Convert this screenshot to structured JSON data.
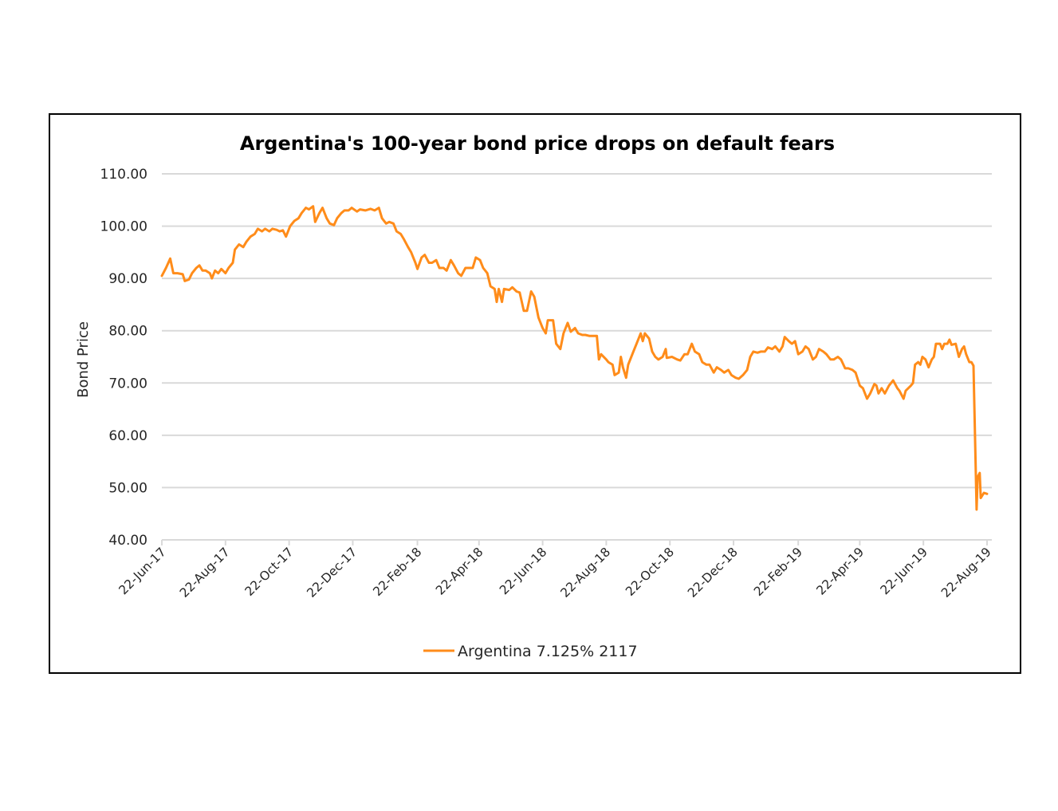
{
  "chart_data": {
    "type": "line",
    "title": "Argentina's 100-year bond price drops on default fears",
    "xlabel": "",
    "ylabel": "Bond Price",
    "ylim": [
      40,
      110
    ],
    "yticks": [
      "40.00",
      "50.00",
      "60.00",
      "70.00",
      "80.00",
      "90.00",
      "100.00",
      "110.00"
    ],
    "ytick_values": [
      40,
      50,
      60,
      70,
      80,
      90,
      100,
      110
    ],
    "xlim": [
      "2017-06-22",
      "2019-08-22"
    ],
    "xticks": [
      "22-Jun-17",
      "22-Aug-17",
      "22-Oct-17",
      "22-Dec-17",
      "22-Feb-18",
      "22-Apr-18",
      "22-Jun-18",
      "22-Aug-18",
      "22-Oct-18",
      "22-Dec-18",
      "22-Feb-19",
      "22-Apr-19",
      "22-Jun-19",
      "22-Aug-19"
    ],
    "xtick_dates": [
      "2017-06-22",
      "2017-08-22",
      "2017-10-22",
      "2017-12-22",
      "2018-02-22",
      "2018-04-22",
      "2018-06-22",
      "2018-08-22",
      "2018-10-22",
      "2018-12-22",
      "2019-02-22",
      "2019-04-22",
      "2019-06-22",
      "2019-08-22"
    ],
    "grid": true,
    "legend": "bottom-center",
    "series": [
      {
        "name": "Argentina 7.125% 2117",
        "color": "#ff8c1a",
        "points": [
          [
            "2017-06-22",
            90.5
          ],
          [
            "2017-06-26",
            92.0
          ],
          [
            "2017-06-30",
            93.8
          ],
          [
            "2017-07-03",
            91.0
          ],
          [
            "2017-07-07",
            91.0
          ],
          [
            "2017-07-12",
            90.8
          ],
          [
            "2017-07-14",
            89.5
          ],
          [
            "2017-07-18",
            89.8
          ],
          [
            "2017-07-21",
            91.0
          ],
          [
            "2017-07-25",
            92.0
          ],
          [
            "2017-07-28",
            92.5
          ],
          [
            "2017-07-31",
            91.5
          ],
          [
            "2017-08-03",
            91.5
          ],
          [
            "2017-08-07",
            91.0
          ],
          [
            "2017-08-09",
            90.0
          ],
          [
            "2017-08-12",
            91.5
          ],
          [
            "2017-08-15",
            91.0
          ],
          [
            "2017-08-18",
            91.8
          ],
          [
            "2017-08-22",
            91.0
          ],
          [
            "2017-08-25",
            92.0
          ],
          [
            "2017-08-29",
            93.0
          ],
          [
            "2017-08-31",
            95.5
          ],
          [
            "2017-09-04",
            96.5
          ],
          [
            "2017-09-08",
            96.0
          ],
          [
            "2017-09-11",
            97.0
          ],
          [
            "2017-09-15",
            98.0
          ],
          [
            "2017-09-19",
            98.5
          ],
          [
            "2017-09-22",
            99.5
          ],
          [
            "2017-09-26",
            99.0
          ],
          [
            "2017-09-29",
            99.5
          ],
          [
            "2017-10-03",
            99.0
          ],
          [
            "2017-10-06",
            99.5
          ],
          [
            "2017-10-10",
            99.3
          ],
          [
            "2017-10-13",
            99.0
          ],
          [
            "2017-10-16",
            99.2
          ],
          [
            "2017-10-19",
            98.0
          ],
          [
            "2017-10-23",
            100.0
          ],
          [
            "2017-10-27",
            101.0
          ],
          [
            "2017-10-31",
            101.5
          ],
          [
            "2017-11-03",
            102.5
          ],
          [
            "2017-11-07",
            103.5
          ],
          [
            "2017-11-10",
            103.2
          ],
          [
            "2017-11-14",
            103.8
          ],
          [
            "2017-11-16",
            100.8
          ],
          [
            "2017-11-20",
            102.5
          ],
          [
            "2017-11-23",
            103.5
          ],
          [
            "2017-11-27",
            101.5
          ],
          [
            "2017-11-30",
            100.5
          ],
          [
            "2017-12-04",
            100.2
          ],
          [
            "2017-12-07",
            101.5
          ],
          [
            "2017-12-11",
            102.5
          ],
          [
            "2017-12-14",
            103.0
          ],
          [
            "2017-12-18",
            103.0
          ],
          [
            "2017-12-21",
            103.5
          ],
          [
            "2017-12-26",
            102.8
          ],
          [
            "2017-12-29",
            103.2
          ],
          [
            "2018-01-03",
            103.0
          ],
          [
            "2018-01-08",
            103.3
          ],
          [
            "2018-01-12",
            103.0
          ],
          [
            "2018-01-16",
            103.5
          ],
          [
            "2018-01-19",
            101.5
          ],
          [
            "2018-01-23",
            100.5
          ],
          [
            "2018-01-26",
            100.8
          ],
          [
            "2018-01-30",
            100.5
          ],
          [
            "2018-02-02",
            99.0
          ],
          [
            "2018-02-06",
            98.5
          ],
          [
            "2018-02-09",
            97.5
          ],
          [
            "2018-02-13",
            96.0
          ],
          [
            "2018-02-16",
            95.0
          ],
          [
            "2018-02-20",
            93.0
          ],
          [
            "2018-02-22",
            91.8
          ],
          [
            "2018-02-26",
            94.0
          ],
          [
            "2018-03-01",
            94.5
          ],
          [
            "2018-03-05",
            93.0
          ],
          [
            "2018-03-08",
            93.0
          ],
          [
            "2018-03-12",
            93.5
          ],
          [
            "2018-03-15",
            92.0
          ],
          [
            "2018-03-19",
            92.0
          ],
          [
            "2018-03-22",
            91.5
          ],
          [
            "2018-03-26",
            93.5
          ],
          [
            "2018-03-29",
            92.5
          ],
          [
            "2018-04-02",
            91.0
          ],
          [
            "2018-04-05",
            90.5
          ],
          [
            "2018-04-09",
            92.0
          ],
          [
            "2018-04-12",
            92.0
          ],
          [
            "2018-04-16",
            92.0
          ],
          [
            "2018-04-19",
            94.0
          ],
          [
            "2018-04-23",
            93.5
          ],
          [
            "2018-04-26",
            92.0
          ],
          [
            "2018-04-30",
            91.0
          ],
          [
            "2018-05-03",
            88.5
          ],
          [
            "2018-05-07",
            88.0
          ],
          [
            "2018-05-09",
            85.5
          ],
          [
            "2018-05-11",
            88.0
          ],
          [
            "2018-05-14",
            85.5
          ],
          [
            "2018-05-16",
            88.0
          ],
          [
            "2018-05-21",
            87.8
          ],
          [
            "2018-05-24",
            88.3
          ],
          [
            "2018-05-28",
            87.5
          ],
          [
            "2018-05-31",
            87.3
          ],
          [
            "2018-06-04",
            83.8
          ],
          [
            "2018-06-07",
            83.8
          ],
          [
            "2018-06-11",
            87.5
          ],
          [
            "2018-06-14",
            86.5
          ],
          [
            "2018-06-18",
            82.5
          ],
          [
            "2018-06-22",
            80.5
          ],
          [
            "2018-06-25",
            79.5
          ],
          [
            "2018-06-27",
            82.0
          ],
          [
            "2018-07-02",
            82.0
          ],
          [
            "2018-07-05",
            77.5
          ],
          [
            "2018-07-09",
            76.5
          ],
          [
            "2018-07-12",
            79.5
          ],
          [
            "2018-07-16",
            81.5
          ],
          [
            "2018-07-19",
            79.8
          ],
          [
            "2018-07-23",
            80.5
          ],
          [
            "2018-07-26",
            79.5
          ],
          [
            "2018-07-30",
            79.2
          ],
          [
            "2018-08-02",
            79.2
          ],
          [
            "2018-08-06",
            79.0
          ],
          [
            "2018-08-09",
            79.0
          ],
          [
            "2018-08-13",
            79.0
          ],
          [
            "2018-08-15",
            74.5
          ],
          [
            "2018-08-17",
            75.5
          ],
          [
            "2018-08-22",
            74.5
          ],
          [
            "2018-08-24",
            74.0
          ],
          [
            "2018-08-28",
            73.5
          ],
          [
            "2018-08-30",
            71.5
          ],
          [
            "2018-09-03",
            72.0
          ],
          [
            "2018-09-05",
            75.0
          ],
          [
            "2018-09-07",
            73.0
          ],
          [
            "2018-09-10",
            71.0
          ],
          [
            "2018-09-12",
            73.5
          ],
          [
            "2018-09-17",
            76.0
          ],
          [
            "2018-09-20",
            77.5
          ],
          [
            "2018-09-24",
            79.5
          ],
          [
            "2018-09-26",
            78.0
          ],
          [
            "2018-09-28",
            79.5
          ],
          [
            "2018-10-02",
            78.5
          ],
          [
            "2018-10-05",
            76.0
          ],
          [
            "2018-10-08",
            75.0
          ],
          [
            "2018-10-11",
            74.5
          ],
          [
            "2018-10-15",
            75.0
          ],
          [
            "2018-10-18",
            76.5
          ],
          [
            "2018-10-19",
            74.8
          ],
          [
            "2018-10-24",
            75.0
          ],
          [
            "2018-10-29",
            74.5
          ],
          [
            "2018-11-01",
            74.3
          ],
          [
            "2018-11-05",
            75.5
          ],
          [
            "2018-11-08",
            75.5
          ],
          [
            "2018-11-12",
            77.5
          ],
          [
            "2018-11-15",
            76.0
          ],
          [
            "2018-11-19",
            75.5
          ],
          [
            "2018-11-22",
            74.0
          ],
          [
            "2018-11-26",
            73.5
          ],
          [
            "2018-11-29",
            73.5
          ],
          [
            "2018-12-03",
            72.0
          ],
          [
            "2018-12-06",
            73.0
          ],
          [
            "2018-12-10",
            72.5
          ],
          [
            "2018-12-13",
            72.0
          ],
          [
            "2018-12-17",
            72.5
          ],
          [
            "2018-12-20",
            71.5
          ],
          [
            "2018-12-24",
            71.0
          ],
          [
            "2018-12-27",
            70.8
          ],
          [
            "2018-12-31",
            71.5
          ],
          [
            "2019-01-04",
            72.5
          ],
          [
            "2019-01-07",
            75.0
          ],
          [
            "2019-01-10",
            76.0
          ],
          [
            "2019-01-14",
            75.8
          ],
          [
            "2019-01-17",
            76.0
          ],
          [
            "2019-01-21",
            76.0
          ],
          [
            "2019-01-24",
            76.8
          ],
          [
            "2019-01-28",
            76.5
          ],
          [
            "2019-01-31",
            77.0
          ],
          [
            "2019-02-04",
            76.0
          ],
          [
            "2019-02-07",
            77.0
          ],
          [
            "2019-02-09",
            78.8
          ],
          [
            "2019-02-13",
            78.0
          ],
          [
            "2019-02-16",
            77.5
          ],
          [
            "2019-02-19",
            78.0
          ],
          [
            "2019-02-22",
            75.5
          ],
          [
            "2019-02-26",
            76.0
          ],
          [
            "2019-03-01",
            77.0
          ],
          [
            "2019-03-04",
            76.5
          ],
          [
            "2019-03-08",
            74.5
          ],
          [
            "2019-03-11",
            75.0
          ],
          [
            "2019-03-14",
            76.5
          ],
          [
            "2019-03-18",
            76.0
          ],
          [
            "2019-03-21",
            75.5
          ],
          [
            "2019-03-25",
            74.5
          ],
          [
            "2019-03-28",
            74.5
          ],
          [
            "2019-04-01",
            75.0
          ],
          [
            "2019-04-04",
            74.5
          ],
          [
            "2019-04-08",
            72.8
          ],
          [
            "2019-04-11",
            72.8
          ],
          [
            "2019-04-15",
            72.5
          ],
          [
            "2019-04-18",
            72.0
          ],
          [
            "2019-04-22",
            69.5
          ],
          [
            "2019-04-25",
            69.0
          ],
          [
            "2019-04-29",
            67.0
          ],
          [
            "2019-05-02",
            68.0
          ],
          [
            "2019-05-06",
            69.8
          ],
          [
            "2019-05-08",
            69.5
          ],
          [
            "2019-05-10",
            68.0
          ],
          [
            "2019-05-13",
            69.0
          ],
          [
            "2019-05-16",
            68.0
          ],
          [
            "2019-05-20",
            69.5
          ],
          [
            "2019-05-24",
            70.5
          ],
          [
            "2019-05-28",
            69.0
          ],
          [
            "2019-05-30",
            68.5
          ],
          [
            "2019-06-03",
            67.0
          ],
          [
            "2019-06-05",
            68.5
          ],
          [
            "2019-06-10",
            69.5
          ],
          [
            "2019-06-12",
            70.0
          ],
          [
            "2019-06-14",
            73.5
          ],
          [
            "2019-06-17",
            74.0
          ],
          [
            "2019-06-19",
            73.5
          ],
          [
            "2019-06-21",
            75.0
          ],
          [
            "2019-06-24",
            74.5
          ],
          [
            "2019-06-27",
            73.0
          ],
          [
            "2019-06-30",
            74.5
          ],
          [
            "2019-07-02",
            75.0
          ],
          [
            "2019-07-04",
            77.5
          ],
          [
            "2019-07-08",
            77.5
          ],
          [
            "2019-07-10",
            76.5
          ],
          [
            "2019-07-12",
            77.5
          ],
          [
            "2019-07-15",
            77.5
          ],
          [
            "2019-07-17",
            78.3
          ],
          [
            "2019-07-19",
            77.3
          ],
          [
            "2019-07-23",
            77.5
          ],
          [
            "2019-07-26",
            75.0
          ],
          [
            "2019-07-29",
            76.5
          ],
          [
            "2019-07-31",
            77.0
          ],
          [
            "2019-08-02",
            75.5
          ],
          [
            "2019-08-05",
            74.0
          ],
          [
            "2019-08-07",
            74.0
          ],
          [
            "2019-08-09",
            73.3
          ],
          [
            "2019-08-12",
            45.8
          ],
          [
            "2019-08-13",
            52.0
          ],
          [
            "2019-08-15",
            52.8
          ],
          [
            "2019-08-16",
            48.0
          ],
          [
            "2019-08-19",
            49.0
          ],
          [
            "2019-08-22",
            48.8
          ]
        ]
      }
    ]
  }
}
